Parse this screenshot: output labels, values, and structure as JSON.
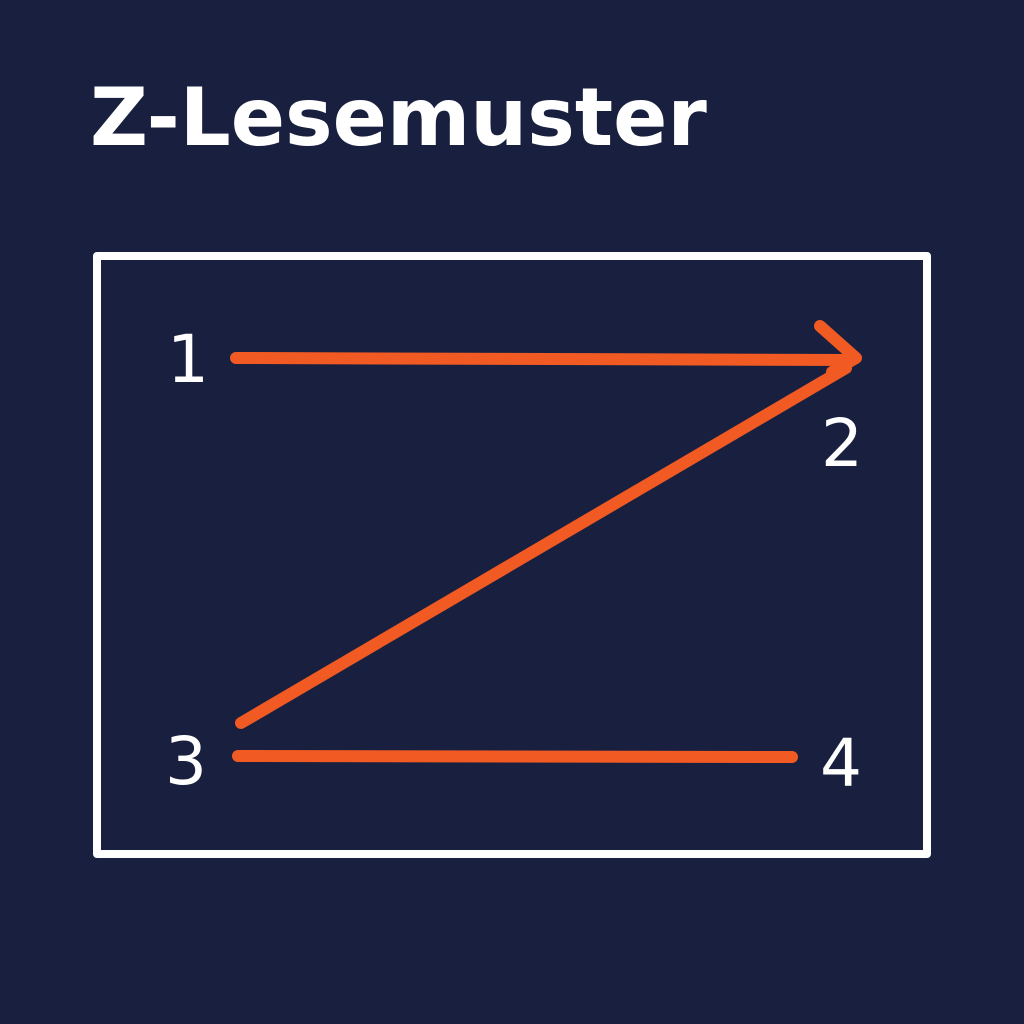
{
  "title": "Z-Lesemuster",
  "colors": {
    "background": "#19203f",
    "frame": "#ffffff",
    "path": "#f15a22",
    "text": "#ffffff"
  },
  "steps": [
    {
      "label": "1"
    },
    {
      "label": "2"
    },
    {
      "label": "3"
    },
    {
      "label": "4"
    }
  ]
}
